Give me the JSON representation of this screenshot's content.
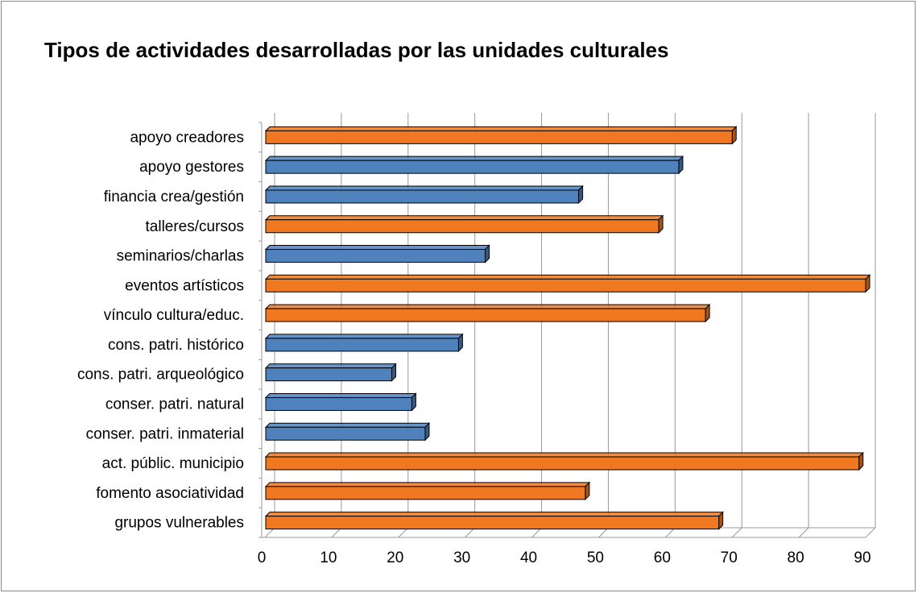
{
  "chart_data": {
    "type": "bar",
    "orientation": "horizontal",
    "title": "Tipos de actividades desarrolladas por las unidades culturales",
    "categories": [
      "apoyo creadores",
      "apoyo gestores",
      "financia crea/gestión",
      "talleres/cursos",
      "seminarios/charlas",
      "eventos artísticos",
      "vínculo cultura/educ.",
      "cons. patri. histórico",
      "cons. patri. arqueológico",
      "conser. patri. natural",
      "conser. patri. inmaterial",
      "act. públic. municipio",
      "fomento asociatividad",
      "grupos vulnerables"
    ],
    "values": [
      70,
      62,
      47,
      59,
      33,
      90,
      66,
      29,
      19,
      22,
      24,
      89,
      48,
      68
    ],
    "colors": [
      "#f07820",
      "#4f81bd",
      "#4f81bd",
      "#f07820",
      "#4f81bd",
      "#f07820",
      "#f07820",
      "#4f81bd",
      "#4f81bd",
      "#4f81bd",
      "#4f81bd",
      "#f07820",
      "#f07820",
      "#f07820"
    ],
    "xlim": [
      0,
      90
    ],
    "xticks": [
      0,
      10,
      20,
      30,
      40,
      50,
      60,
      70,
      80,
      90
    ],
    "grid": true
  }
}
